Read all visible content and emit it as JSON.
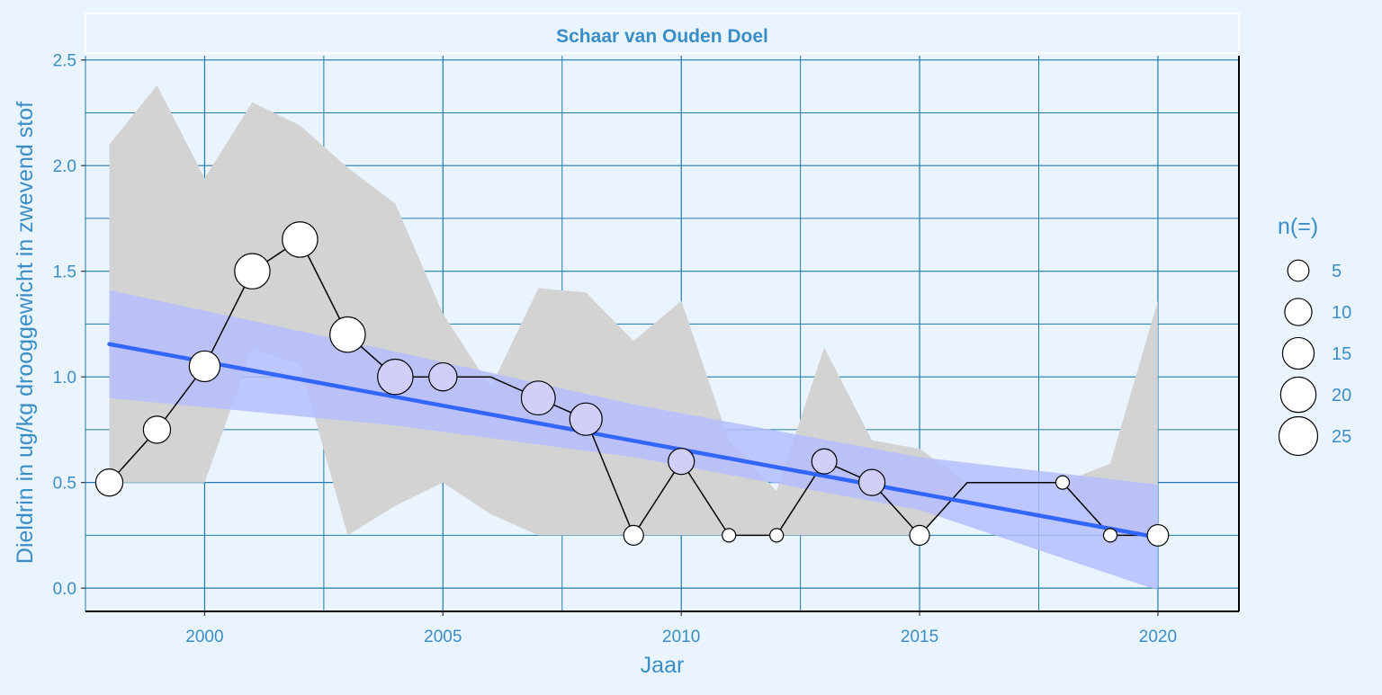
{
  "chart_data": {
    "type": "line",
    "title": "Schaar van Ouden Doel",
    "xlabel": "Jaar",
    "ylabel": "Dieldrin in ug/kg drooggewicht in zwevend stof",
    "xlim": [
      1997.5,
      2021.7
    ],
    "ylim": [
      -0.11,
      2.52
    ],
    "x_ticks": [
      2000,
      2005,
      2010,
      2015,
      2020
    ],
    "y_ticks": [
      "0.0",
      "0.5",
      "1.0",
      "1.5",
      "2.0",
      "2.5"
    ],
    "x_minor_ticks": [
      1997.5,
      2002.5,
      2007.5,
      2012.5,
      2017.5
    ],
    "y_minor_ticks": [
      0.25,
      0.75,
      1.25,
      1.75,
      2.25
    ],
    "grid": true,
    "legend": {
      "title": "n(=)",
      "position": "right",
      "sizes": [
        5,
        10,
        15,
        20,
        25
      ],
      "labels": [
        "5",
        "10",
        "15",
        "20",
        "25"
      ]
    },
    "series": [
      {
        "kind": "observations",
        "marker": "circle, size by n",
        "points": [
          {
            "x": 1998,
            "y": 0.5,
            "n": 10,
            "above_trend": false
          },
          {
            "x": 1999,
            "y": 0.75,
            "n": 10,
            "above_trend": false
          },
          {
            "x": 2000,
            "y": 1.05,
            "n": 14,
            "above_trend": false
          },
          {
            "x": 2001,
            "y": 1.5,
            "n": 20,
            "above_trend": false
          },
          {
            "x": 2002,
            "y": 1.65,
            "n": 20,
            "above_trend": false
          },
          {
            "x": 2003,
            "y": 1.2,
            "n": 20,
            "above_trend": false
          },
          {
            "x": 2004,
            "y": 1.0,
            "n": 20,
            "above_trend": true
          },
          {
            "x": 2005,
            "y": 1.0,
            "n": 11,
            "above_trend": true
          },
          {
            "x": 2007,
            "y": 0.9,
            "n": 18,
            "above_trend": true
          },
          {
            "x": 2008,
            "y": 0.8,
            "n": 16,
            "above_trend": true
          },
          {
            "x": 2009,
            "y": 0.25,
            "n": 4,
            "above_trend": false
          },
          {
            "x": 2010,
            "y": 0.6,
            "n": 9,
            "above_trend": true
          },
          {
            "x": 2011,
            "y": 0.25,
            "n": 1,
            "above_trend": false
          },
          {
            "x": 2012,
            "y": 0.25,
            "n": 1,
            "above_trend": false
          },
          {
            "x": 2013,
            "y": 0.6,
            "n": 8,
            "above_trend": true
          },
          {
            "x": 2014,
            "y": 0.5,
            "n": 9,
            "above_trend": true
          },
          {
            "x": 2015,
            "y": 0.25,
            "n": 4,
            "above_trend": false
          },
          {
            "x": 2018,
            "y": 0.5,
            "n": 1,
            "above_trend": false
          },
          {
            "x": 2019,
            "y": 0.25,
            "n": 1,
            "above_trend": false
          },
          {
            "x": 2020,
            "y": 0.25,
            "n": 5,
            "above_trend": false
          }
        ],
        "line": [
          [
            1998,
            0.5
          ],
          [
            1999,
            0.75
          ],
          [
            2000,
            1.05
          ],
          [
            2001,
            1.5
          ],
          [
            2002,
            1.65
          ],
          [
            2003,
            1.2
          ],
          [
            2004,
            1.0
          ],
          [
            2005,
            1.0
          ],
          [
            2006,
            1.0
          ],
          [
            2007,
            0.9
          ],
          [
            2008,
            0.8
          ],
          [
            2009,
            0.25
          ],
          [
            2010,
            0.6
          ],
          [
            2011,
            0.25
          ],
          [
            2012,
            0.25
          ],
          [
            2013,
            0.6
          ],
          [
            2014,
            0.5
          ],
          [
            2015,
            0.25
          ],
          [
            2016,
            0.5
          ],
          [
            2017,
            0.5
          ],
          [
            2018,
            0.5
          ],
          [
            2019,
            0.25
          ],
          [
            2020,
            0.25
          ]
        ]
      },
      {
        "kind": "range band",
        "upper": [
          [
            1998,
            2.1
          ],
          [
            1999,
            2.38
          ],
          [
            2000,
            1.94
          ],
          [
            2001,
            2.3
          ],
          [
            2002,
            2.19
          ],
          [
            2003,
            1.99
          ],
          [
            2004,
            1.82
          ],
          [
            2005,
            1.3
          ],
          [
            2006,
            0.95
          ],
          [
            2007,
            1.42
          ],
          [
            2008,
            1.4
          ],
          [
            2009,
            1.17
          ],
          [
            2010,
            1.36
          ],
          [
            2011,
            0.7
          ],
          [
            2012,
            0.46
          ],
          [
            2013,
            1.14
          ],
          [
            2014,
            0.7
          ],
          [
            2015,
            0.66
          ],
          [
            2016,
            0.5
          ],
          [
            2017,
            0.5
          ],
          [
            2018,
            0.5
          ],
          [
            2019,
            0.59
          ],
          [
            2020,
            1.36
          ]
        ],
        "lower": [
          [
            1998,
            0.5
          ],
          [
            1999,
            0.5
          ],
          [
            2000,
            0.5
          ],
          [
            2001,
            1.13
          ],
          [
            2002,
            1.06
          ],
          [
            2003,
            0.25
          ],
          [
            2004,
            0.39
          ],
          [
            2005,
            0.5
          ],
          [
            2006,
            0.35
          ],
          [
            2007,
            0.25
          ],
          [
            2008,
            0.25
          ],
          [
            2009,
            0.25
          ],
          [
            2010,
            0.25
          ],
          [
            2011,
            0.25
          ],
          [
            2012,
            0.25
          ],
          [
            2013,
            0.25
          ],
          [
            2014,
            0.25
          ],
          [
            2015,
            0.25
          ],
          [
            2016,
            0.5
          ],
          [
            2017,
            0.5
          ],
          [
            2018,
            0.5
          ],
          [
            2019,
            0.25
          ],
          [
            2020,
            0.25
          ]
        ]
      },
      {
        "kind": "linear trend",
        "line": [
          [
            1998,
            1.155
          ],
          [
            2020,
            0.24
          ]
        ],
        "ci_upper": [
          [
            1998,
            1.41
          ],
          [
            2004,
            1.12
          ],
          [
            2009,
            0.87
          ],
          [
            2015,
            0.62
          ],
          [
            2020,
            0.49
          ]
        ],
        "ci_lower": [
          [
            1998,
            0.9
          ],
          [
            2004,
            0.77
          ],
          [
            2009,
            0.62
          ],
          [
            2015,
            0.37
          ],
          [
            2020,
            -0.01
          ]
        ]
      }
    ],
    "colors": {
      "background": "#eaf4fe",
      "grid": "#1f7cab",
      "text": "#3a8ec8",
      "range_band": "#d3d3d3",
      "trend_ci": "#b8c4ff",
      "trend_line": "#3366ff",
      "marker_above_trend": "#cfcffa",
      "marker_default": "#ffffff"
    }
  }
}
